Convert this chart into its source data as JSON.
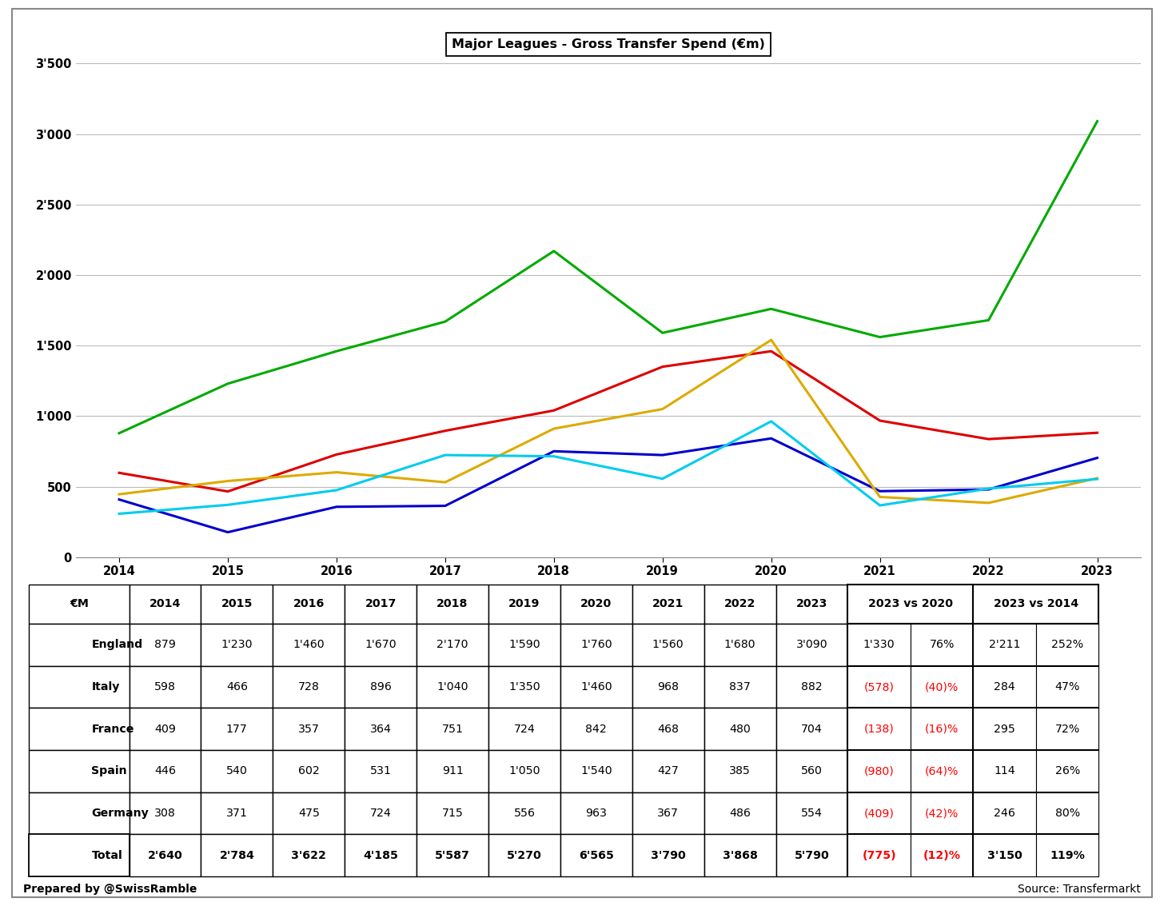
{
  "title": "Major Leagues - Gross Transfer Spend (€m)",
  "years": [
    2014,
    2015,
    2016,
    2017,
    2018,
    2019,
    2020,
    2021,
    2022,
    2023
  ],
  "series": {
    "England": {
      "values": [
        879,
        1230,
        1460,
        1670,
        2170,
        1590,
        1760,
        1560,
        1680,
        3090
      ],
      "color": "#00aa00"
    },
    "Italy": {
      "values": [
        598,
        466,
        728,
        896,
        1040,
        1350,
        1460,
        968,
        837,
        882
      ],
      "color": "#dd0000"
    },
    "France": {
      "values": [
        409,
        177,
        357,
        364,
        751,
        724,
        842,
        468,
        480,
        704
      ],
      "color": "#0000cc"
    },
    "Spain": {
      "values": [
        446,
        540,
        602,
        531,
        911,
        1050,
        1540,
        427,
        385,
        560
      ],
      "color": "#ddaa00"
    },
    "Germany": {
      "values": [
        308,
        371,
        475,
        724,
        715,
        556,
        963,
        367,
        486,
        554
      ],
      "color": "#00ccee"
    }
  },
  "ylim": [
    0,
    3500
  ],
  "yticks": [
    0,
    500,
    1000,
    1500,
    2000,
    2500,
    3000,
    3500
  ],
  "ytick_labels": [
    "0",
    "500",
    "1'000",
    "1'500",
    "2'000",
    "2'500",
    "3'000",
    "3'500"
  ],
  "table_rows": {
    "England": [
      "879",
      "1'230",
      "1'460",
      "1'670",
      "2'170",
      "1'590",
      "1'760",
      "1'560",
      "1'680",
      "3'090",
      "1'330",
      "76%",
      "2'211",
      "252%"
    ],
    "Italy": [
      "598",
      "466",
      "728",
      "896",
      "1'040",
      "1'350",
      "1'460",
      "968",
      "837",
      "882",
      "(578)",
      "(40)%",
      "284",
      "47%"
    ],
    "France": [
      "409",
      "177",
      "357",
      "364",
      "751",
      "724",
      "842",
      "468",
      "480",
      "704",
      "(138)",
      "(16)%",
      "295",
      "72%"
    ],
    "Spain": [
      "446",
      "540",
      "602",
      "531",
      "911",
      "1'050",
      "1'540",
      "427",
      "385",
      "560",
      "(980)",
      "(64)%",
      "114",
      "26%"
    ],
    "Germany": [
      "308",
      "371",
      "475",
      "724",
      "715",
      "556",
      "963",
      "367",
      "486",
      "554",
      "(409)",
      "(42)%",
      "246",
      "80%"
    ]
  },
  "table_totals": [
    "2'640",
    "2'784",
    "3'622",
    "4'185",
    "5'587",
    "5'270",
    "6'565",
    "3'790",
    "3'868",
    "5'790",
    "(775)",
    "(12)%",
    "3'150",
    "119%"
  ],
  "red_leagues": [
    "Italy",
    "France",
    "Spain",
    "Germany"
  ],
  "footer_left": "Prepared by @SwissRamble",
  "footer_right": "Source: Transfermarkt"
}
